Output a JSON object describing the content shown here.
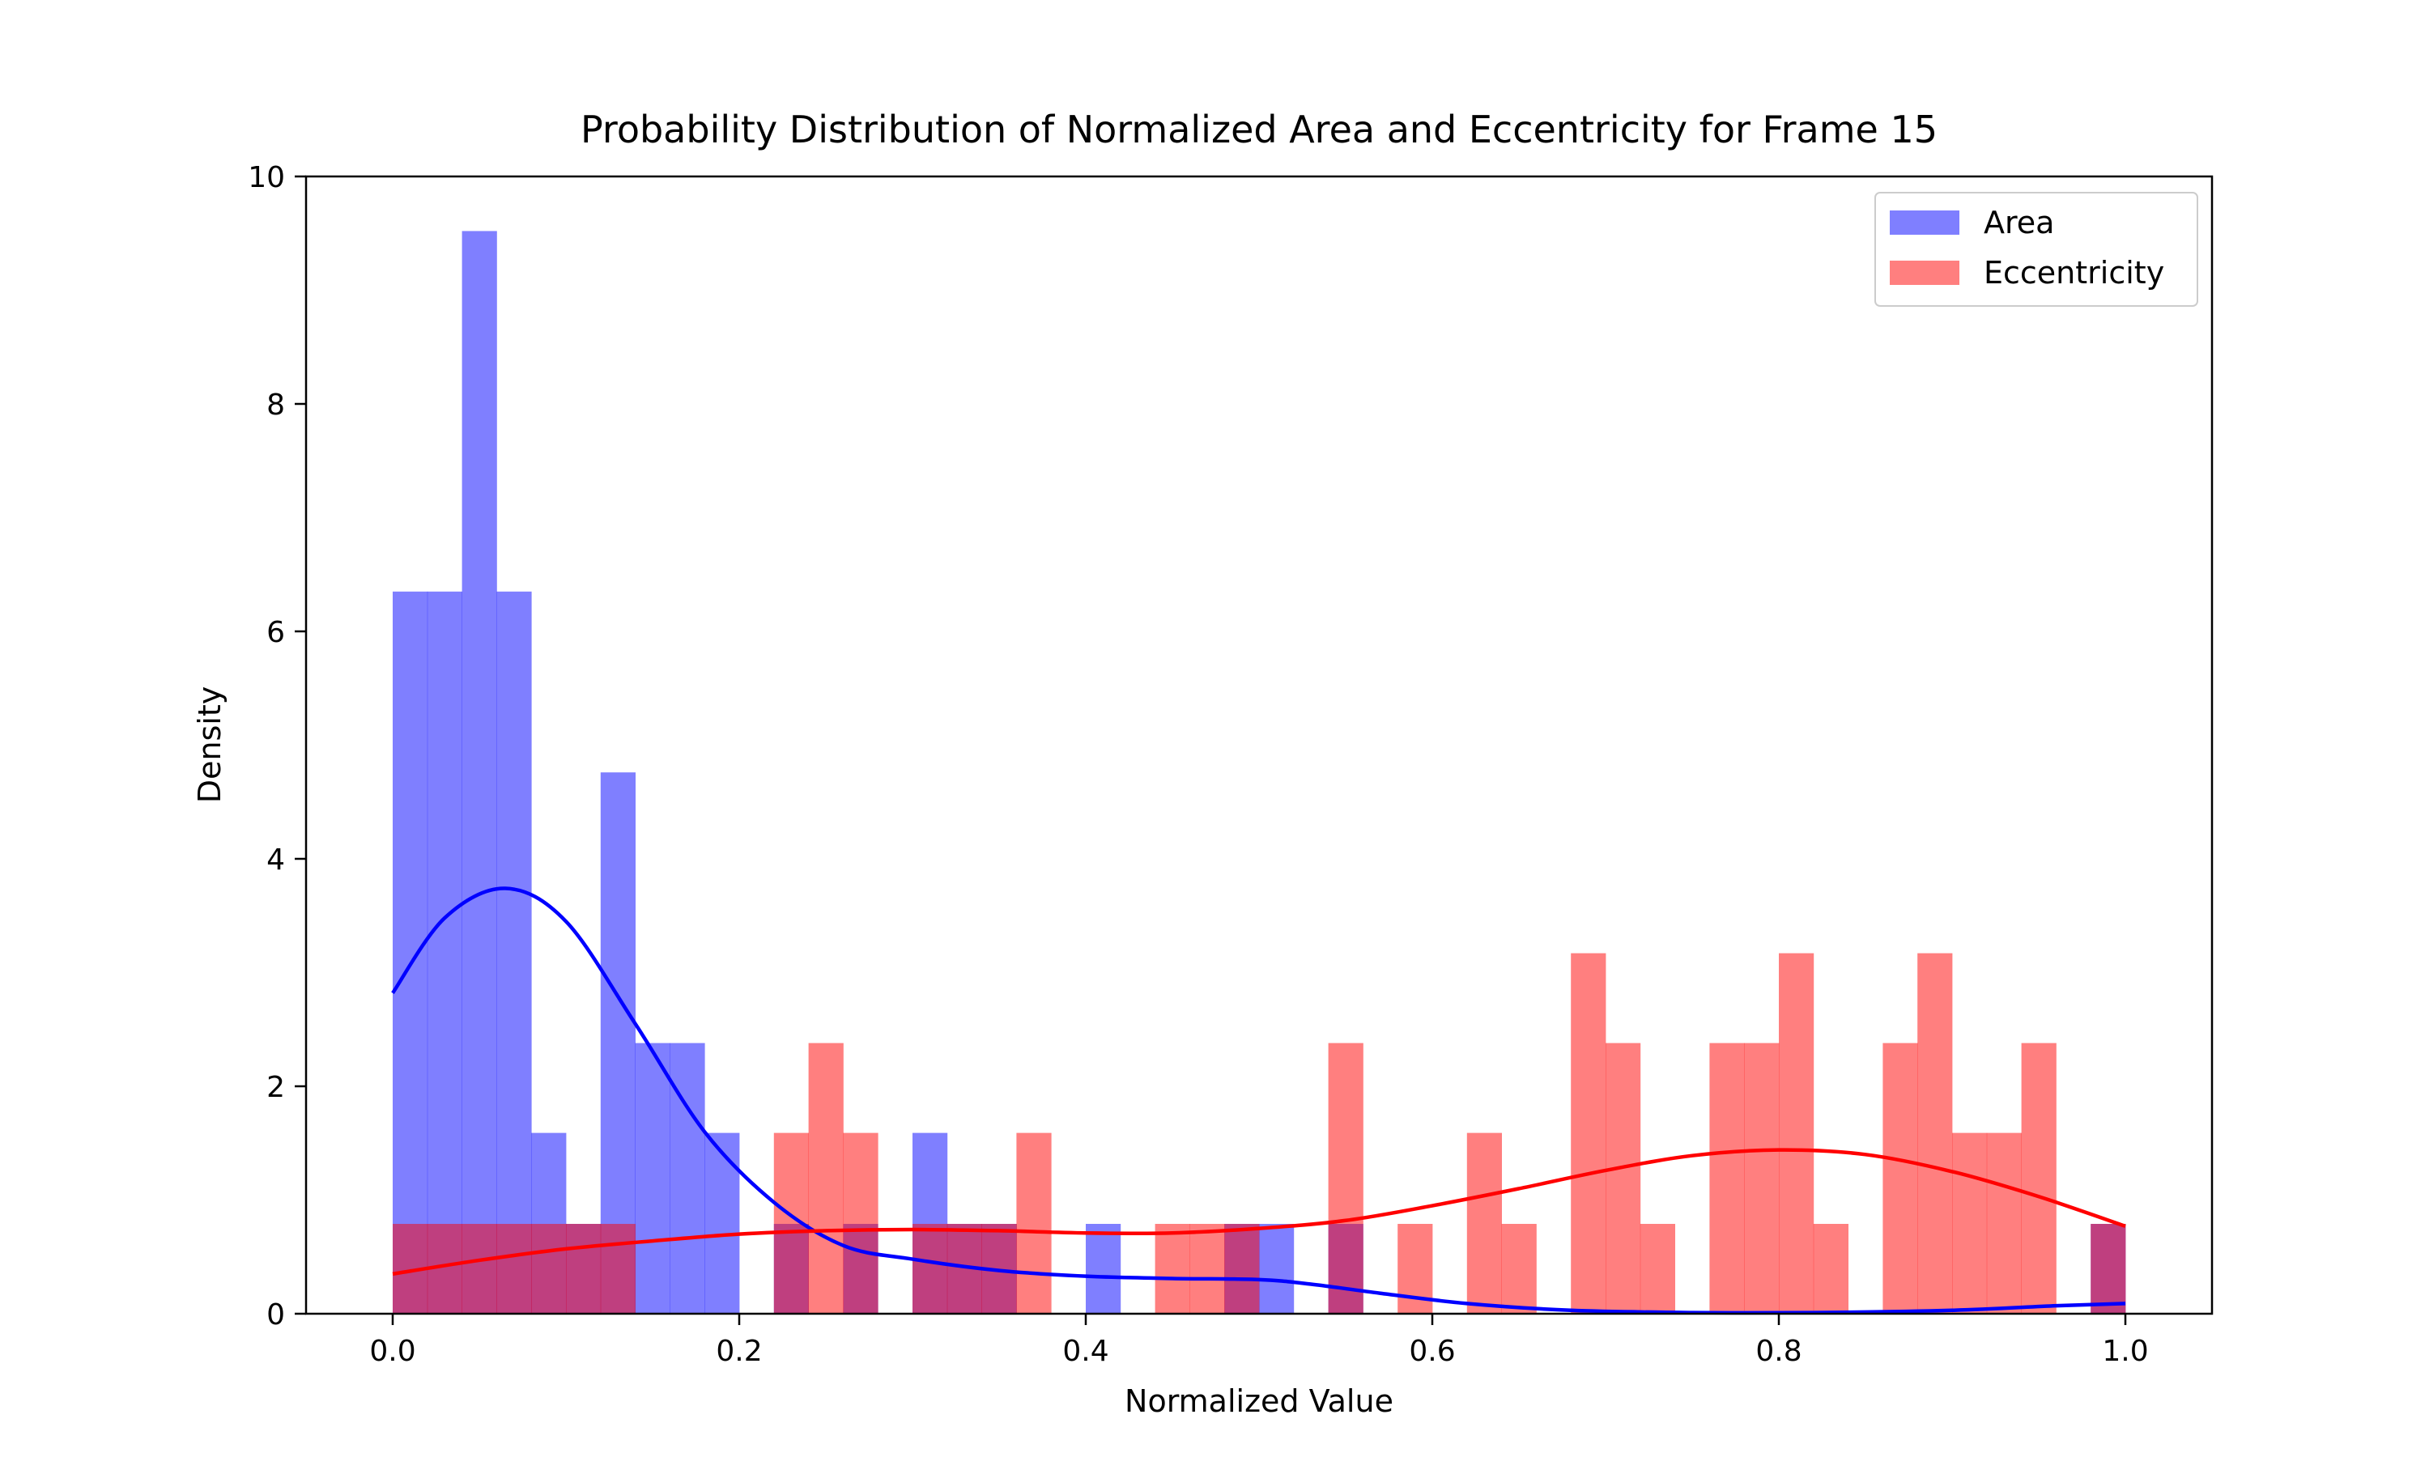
{
  "chart_data": {
    "type": "histogram",
    "title": "Probability Distribution of Normalized Area and Eccentricity for Frame 15",
    "xlabel": "Normalized Value",
    "ylabel": "Density",
    "xlim": [
      -0.05,
      1.05
    ],
    "ylim": [
      0,
      10
    ],
    "x_ticks": [
      "0.0",
      "0.2",
      "0.4",
      "0.6",
      "0.8",
      "1.0"
    ],
    "y_ticks": [
      "0",
      "2",
      "4",
      "6",
      "8",
      "10"
    ],
    "grid": false,
    "legend_position": "top-right",
    "bin_edges": [
      0.0,
      0.02,
      0.04,
      0.06,
      0.08,
      0.1,
      0.12,
      0.14,
      0.16,
      0.18,
      0.2,
      0.22,
      0.24,
      0.26,
      0.28,
      0.3,
      0.32,
      0.34,
      0.36,
      0.38,
      0.4,
      0.42,
      0.44,
      0.46,
      0.48,
      0.5,
      0.52,
      0.54,
      0.56,
      0.58,
      0.6,
      0.62,
      0.64,
      0.66,
      0.68,
      0.7,
      0.72,
      0.74,
      0.76,
      0.78,
      0.8,
      0.82,
      0.84,
      0.86,
      0.88,
      0.9,
      0.92,
      0.94,
      0.96,
      0.98,
      1.0
    ],
    "series": [
      {
        "name": "Area",
        "color": "#0000ff",
        "kde_color": "#0000ff",
        "density": [
          6.35,
          6.35,
          9.52,
          6.35,
          1.59,
          0.79,
          4.76,
          2.38,
          2.38,
          1.59,
          0,
          0.79,
          0,
          0.79,
          0,
          1.59,
          0.79,
          0.79,
          0,
          0,
          0.79,
          0,
          0,
          0,
          0.79,
          0.79,
          0,
          0.79,
          0,
          0,
          0,
          0,
          0,
          0,
          0,
          0,
          0,
          0,
          0,
          0,
          0,
          0,
          0,
          0,
          0,
          0,
          0,
          0,
          0,
          0.79
        ],
        "kde": {
          "x": [
            0.0,
            0.03,
            0.065,
            0.1,
            0.14,
            0.18,
            0.22,
            0.26,
            0.3,
            0.35,
            0.4,
            0.45,
            0.5,
            0.53,
            0.57,
            0.62,
            0.68,
            0.75,
            0.82,
            0.9,
            0.96,
            1.0
          ],
          "y": [
            2.82,
            3.48,
            3.74,
            3.45,
            2.55,
            1.6,
            0.98,
            0.6,
            0.48,
            0.38,
            0.33,
            0.31,
            0.3,
            0.26,
            0.18,
            0.09,
            0.03,
            0.01,
            0.01,
            0.03,
            0.07,
            0.09
          ]
        }
      },
      {
        "name": "Eccentricity",
        "color": "#ff0000",
        "kde_color": "#ff0000",
        "density": [
          0.79,
          0.79,
          0.79,
          0.79,
          0.79,
          0.79,
          0.79,
          0,
          0,
          0,
          0,
          1.59,
          2.38,
          1.59,
          0,
          0.79,
          0.79,
          0.79,
          1.59,
          0,
          0,
          0,
          0.79,
          0.79,
          0.79,
          0,
          0,
          2.38,
          0,
          0.79,
          0,
          1.59,
          0.79,
          0,
          3.17,
          2.38,
          0.79,
          0,
          2.38,
          2.38,
          3.17,
          0.79,
          0,
          2.38,
          3.17,
          1.59,
          1.59,
          2.38,
          0,
          0.79
        ],
        "kde": {
          "x": [
            0.0,
            0.05,
            0.1,
            0.15,
            0.2,
            0.25,
            0.3,
            0.35,
            0.4,
            0.45,
            0.5,
            0.55,
            0.6,
            0.65,
            0.7,
            0.75,
            0.8,
            0.85,
            0.9,
            0.95,
            1.0
          ],
          "y": [
            0.35,
            0.47,
            0.57,
            0.64,
            0.7,
            0.73,
            0.74,
            0.73,
            0.71,
            0.71,
            0.75,
            0.82,
            0.95,
            1.1,
            1.26,
            1.39,
            1.44,
            1.4,
            1.25,
            1.03,
            0.77
          ]
        }
      }
    ]
  }
}
